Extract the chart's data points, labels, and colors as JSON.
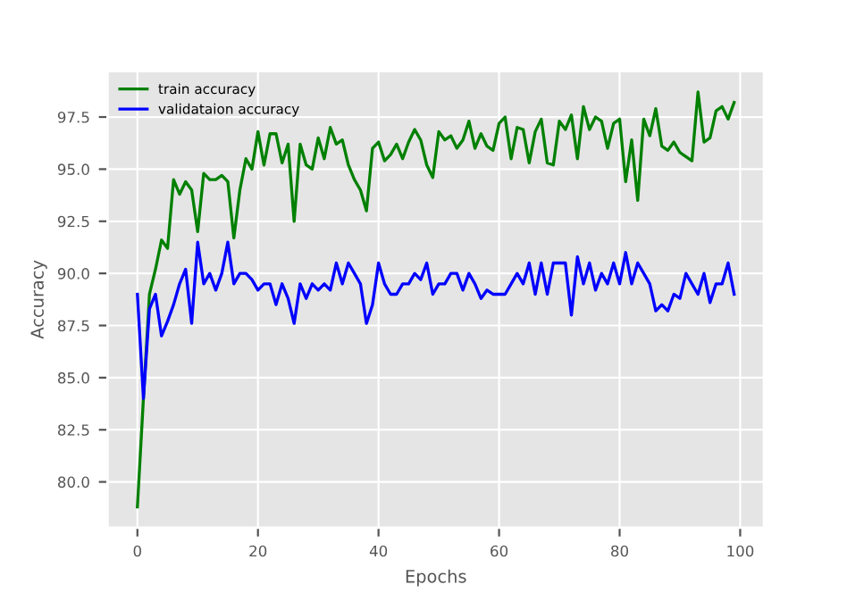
{
  "chart_data": {
    "type": "line",
    "xlabel": "Epochs",
    "ylabel": "Accuracy",
    "x": [
      0,
      1,
      2,
      3,
      4,
      5,
      6,
      7,
      8,
      9,
      10,
      11,
      12,
      13,
      14,
      15,
      16,
      17,
      18,
      19,
      20,
      21,
      22,
      23,
      24,
      25,
      26,
      27,
      28,
      29,
      30,
      31,
      32,
      33,
      34,
      35,
      36,
      37,
      38,
      39,
      40,
      41,
      42,
      43,
      44,
      45,
      46,
      47,
      48,
      49,
      50,
      51,
      52,
      53,
      54,
      55,
      56,
      57,
      58,
      59,
      60,
      61,
      62,
      63,
      64,
      65,
      66,
      67,
      68,
      69,
      70,
      71,
      72,
      73,
      74,
      75,
      76,
      77,
      78,
      79,
      80,
      81,
      82,
      83,
      84,
      85,
      86,
      87,
      88,
      89,
      90,
      91,
      92,
      93,
      94,
      95,
      96,
      97,
      98,
      99
    ],
    "series": [
      {
        "name": "train accuracy",
        "color": "#008000",
        "values": [
          78.8,
          84,
          89,
          90.2,
          91.6,
          91.2,
          94.5,
          93.8,
          94.4,
          94,
          92.0,
          94.8,
          94.5,
          94.5,
          94.7,
          94.4,
          91.7,
          94,
          95.5,
          95,
          96.8,
          95.2,
          96.7,
          96.7,
          95.3,
          96.2,
          92.5,
          96.2,
          95.2,
          95,
          96.5,
          95.5,
          97,
          96.2,
          96.4,
          95.2,
          94.5,
          94,
          93,
          96,
          96.3,
          95.4,
          95.7,
          96.2,
          95.5,
          96.3,
          96.9,
          96.4,
          95.2,
          94.6,
          96.8,
          96.4,
          96.6,
          96,
          96.4,
          97.3,
          96.0,
          96.7,
          96.1,
          95.9,
          97.2,
          97.5,
          95.5,
          97,
          96.9,
          95.3,
          96.8,
          97.4,
          95.3,
          95.2,
          97.3,
          96.9,
          97.6,
          95.5,
          98,
          96.9,
          97.5,
          97.3,
          96,
          97.2,
          97.4,
          94.4,
          96.4,
          93.5,
          97.4,
          96.6,
          97.9,
          96.1,
          95.9,
          96.3,
          95.8,
          95.6,
          95.4,
          98.7,
          96.3,
          96.5,
          97.8,
          98,
          97.4,
          98.2
        ]
      },
      {
        "name": "validataion accuracy",
        "color": "#0000ff",
        "values": [
          89,
          84,
          88.3,
          89,
          87,
          87.7,
          88.5,
          89.5,
          90.2,
          87.6,
          91.5,
          89.5,
          90,
          89.2,
          90,
          91.5,
          89.5,
          90,
          90,
          89.7,
          89.2,
          89.5,
          89.5,
          88.5,
          89.5,
          88.8,
          87.6,
          89.5,
          88.8,
          89.5,
          89.2,
          89.5,
          89.2,
          90.5,
          89.5,
          90.5,
          90,
          89.5,
          87.6,
          88.5,
          90.5,
          89.5,
          89,
          89,
          89.5,
          89.5,
          90,
          89.7,
          90.5,
          89,
          89.5,
          89.5,
          90,
          90,
          89.2,
          90,
          89.5,
          88.8,
          89.2,
          89,
          89,
          89,
          89.5,
          90,
          89.5,
          90.5,
          89,
          90.5,
          89,
          90.5,
          90.5,
          90.5,
          88,
          90.8,
          89.5,
          90.5,
          89.2,
          90,
          89.5,
          90.5,
          89.5,
          91,
          89.5,
          90.5,
          90,
          89.5,
          88.2,
          88.5,
          88.2,
          89,
          88.8,
          90,
          89.5,
          89,
          90,
          88.6,
          89.5,
          89.5,
          90.5,
          89
        ]
      }
    ],
    "xlim": [
      -4.95,
      103.95
    ],
    "ylim": [
      77.8,
      99.7
    ],
    "xticks": [
      0,
      20,
      40,
      60,
      80,
      100
    ],
    "yticks": [
      {
        "value": 80,
        "label": "80.0"
      },
      {
        "value": 82.5,
        "label": "82.5"
      },
      {
        "value": 85,
        "label": "85.0"
      },
      {
        "value": 87.5,
        "label": "87.5"
      },
      {
        "value": 90,
        "label": "90.0"
      },
      {
        "value": 92.5,
        "label": "92.5"
      },
      {
        "value": 95,
        "label": "95.0"
      },
      {
        "value": 97.5,
        "label": "97.5"
      }
    ],
    "grid": true,
    "legend": "top left",
    "marker": "none",
    "line_style": "solid"
  }
}
